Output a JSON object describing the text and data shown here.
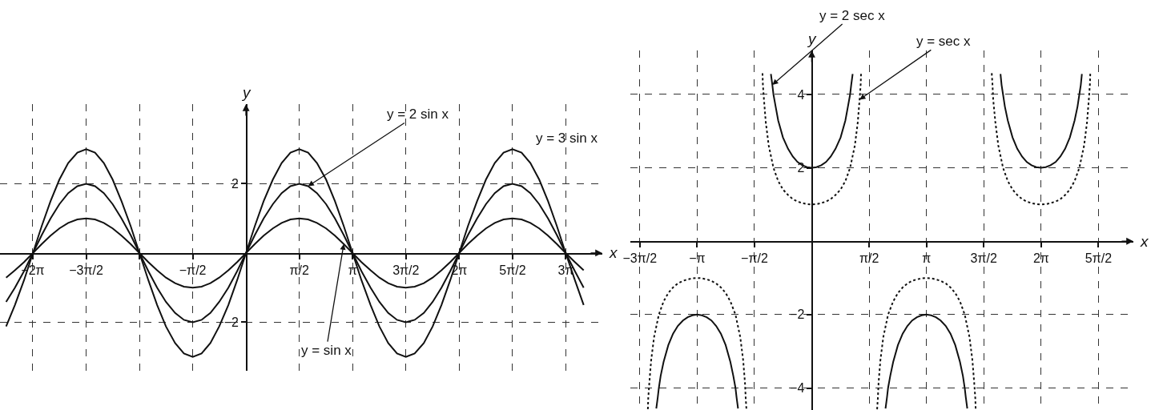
{
  "chart_data": [
    {
      "type": "line",
      "xlabel": "x",
      "ylabel": "y",
      "xlim": [
        -7.25,
        10.5
      ],
      "ylim": [
        -3.4,
        4.3
      ],
      "xticks": [
        {
          "value": -6.2832,
          "label": "−2π"
        },
        {
          "value": -4.7124,
          "label": "−3π/2"
        },
        {
          "value": -3.1416,
          "label": null
        },
        {
          "value": -1.5708,
          "label": "−π/2"
        },
        {
          "value": 1.5708,
          "label": "π/2"
        },
        {
          "value": 3.1416,
          "label": "π"
        },
        {
          "value": 4.7124,
          "label": "3π/2"
        },
        {
          "value": 6.2832,
          "label": "2π"
        },
        {
          "value": 7.854,
          "label": "5π/2"
        },
        {
          "value": 9.4248,
          "label": "3π"
        }
      ],
      "yticks": [
        -2,
        2
      ],
      "grid": true,
      "x": [
        -7.07,
        -6.81,
        -6.54,
        -6.28,
        -6.02,
        -5.76,
        -5.5,
        -5.24,
        -4.97,
        -4.71,
        -4.45,
        -4.19,
        -3.93,
        -3.67,
        -3.4,
        -3.14,
        -2.88,
        -2.62,
        -2.36,
        -2.09,
        -1.83,
        -1.57,
        -1.31,
        -1.05,
        -0.79,
        -0.52,
        -0.26,
        0,
        0.26,
        0.52,
        0.79,
        1.05,
        1.31,
        1.57,
        1.83,
        2.09,
        2.36,
        2.62,
        2.88,
        3.14,
        3.4,
        3.67,
        3.93,
        4.19,
        4.45,
        4.71,
        4.97,
        5.24,
        5.5,
        5.76,
        6.02,
        6.28,
        6.54,
        6.81,
        7.07,
        7.33,
        7.59,
        7.85,
        8.12,
        8.38,
        8.64,
        8.9,
        9.16,
        9.42,
        9.69,
        9.95
      ],
      "series": [
        {
          "name": "y = sin x",
          "color": "#111111",
          "values": [
            -0.71,
            -0.5,
            -0.26,
            0,
            0.26,
            0.5,
            0.71,
            0.87,
            0.97,
            1,
            0.97,
            0.87,
            0.71,
            0.5,
            0.26,
            0,
            -0.26,
            -0.5,
            -0.71,
            -0.87,
            -0.97,
            -1,
            -0.97,
            -0.87,
            -0.71,
            -0.5,
            -0.26,
            0,
            0.26,
            0.5,
            0.71,
            0.87,
            0.97,
            1,
            0.97,
            0.87,
            0.71,
            0.5,
            0.26,
            0,
            -0.26,
            -0.5,
            -0.71,
            -0.87,
            -0.97,
            -1,
            -0.97,
            -0.87,
            -0.71,
            -0.5,
            -0.26,
            0,
            0.26,
            0.5,
            0.71,
            0.87,
            0.97,
            1,
            0.97,
            0.87,
            0.71,
            0.5,
            0.26,
            0,
            -0.26,
            -0.5
          ]
        },
        {
          "name": "y = 2 sin x",
          "color": "#111111",
          "values": [
            -1.41,
            -1,
            -0.52,
            0,
            0.52,
            1,
            1.41,
            1.73,
            1.93,
            2,
            1.93,
            1.73,
            1.41,
            1,
            0.52,
            0,
            -0.52,
            -1,
            -1.41,
            -1.73,
            -1.93,
            -2,
            -1.93,
            -1.73,
            -1.41,
            -1,
            -0.52,
            0,
            0.52,
            1,
            1.41,
            1.73,
            1.93,
            2,
            1.93,
            1.73,
            1.41,
            1,
            0.52,
            0,
            -0.52,
            -1,
            -1.41,
            -1.73,
            -1.93,
            -2,
            -1.93,
            -1.73,
            -1.41,
            -1,
            -0.52,
            0,
            0.52,
            1,
            1.41,
            1.73,
            1.93,
            2,
            1.93,
            1.73,
            1.41,
            1,
            0.52,
            0,
            -0.52,
            -1
          ]
        },
        {
          "name": "y = 3 sin x",
          "color": "#111111",
          "values": [
            -2.12,
            -1.5,
            -0.78,
            0,
            0.78,
            1.5,
            2.12,
            2.6,
            2.9,
            3,
            2.9,
            2.6,
            2.12,
            1.5,
            0.78,
            0,
            -0.78,
            -1.5,
            -2.12,
            -2.6,
            -2.9,
            -3,
            -2.9,
            -2.6,
            -2.12,
            -1.5,
            -0.78,
            0,
            0.78,
            1.5,
            2.12,
            2.6,
            2.9,
            3,
            2.9,
            2.6,
            2.12,
            1.5,
            0.78,
            0,
            -0.78,
            -1.5,
            -2.12,
            -2.6,
            -2.9,
            -3,
            -2.9,
            -2.6,
            -2.12,
            -1.5,
            -0.78,
            0,
            0.78,
            1.5,
            2.12,
            2.6,
            2.9,
            3,
            2.9,
            2.6,
            2.12,
            1.5,
            0.78,
            0,
            -0.78,
            -1.5
          ]
        }
      ]
    },
    {
      "type": "line",
      "xlabel": "x",
      "ylabel": "y",
      "xlim": [
        -4.97,
        8.81
      ],
      "ylim": [
        -4.6,
        5.2
      ],
      "xticks": [
        {
          "value": -4.7124,
          "label": "−3π/2"
        },
        {
          "value": -3.1416,
          "label": "−π"
        },
        {
          "value": -1.5708,
          "label": "−π/2"
        },
        {
          "value": 1.5708,
          "label": "π/2"
        },
        {
          "value": 3.1416,
          "label": "π"
        },
        {
          "value": 4.7124,
          "label": "3π/2"
        },
        {
          "value": 6.2832,
          "label": "2π"
        },
        {
          "value": 7.854,
          "label": "5π/2"
        }
      ],
      "yticks": [
        -4,
        -2,
        2,
        4
      ],
      "grid": true,
      "series": [
        {
          "name": "y = 2 sec x",
          "color": "#111111",
          "x": [
            -4.26,
            -4.22,
            -4.19,
            -4.14,
            -4.06,
            -3.93,
            -3.8,
            -3.67,
            -3.53,
            -3.4,
            -3.27,
            -3.14,
            -3.01,
            -2.88,
            -2.75,
            -2.62,
            -2.49,
            -2.36,
            -2.23,
            -2.15,
            -2.09,
            -2.06,
            -2.02,
            -1.57,
            -1.12,
            -1.08,
            -1.05,
            -0.99,
            -0.92,
            -0.79,
            -0.65,
            -0.52,
            -0.39,
            -0.26,
            -0.13,
            0,
            0.13,
            0.26,
            0.39,
            0.52,
            0.65,
            0.79,
            0.92,
            0.99,
            1.05,
            1.08,
            1.12,
            1.57,
            2.02,
            2.06,
            2.09,
            2.15,
            2.23,
            2.36,
            2.49,
            2.62,
            2.75,
            2.88,
            3.01,
            3.14,
            3.27,
            3.4,
            3.53,
            3.67,
            3.8,
            3.93,
            4.06,
            4.14,
            4.19,
            4.22,
            4.26,
            4.71,
            5.17,
            5.2,
            5.24,
            5.29,
            5.37,
            5.5,
            5.63,
            5.76,
            5.89,
            6.02,
            6.15,
            6.28,
            6.41,
            6.54,
            6.68,
            6.81,
            6.94,
            7.07,
            7.2,
            7.28,
            7.33,
            7.37,
            7.4
          ],
          "values": [
            -4.56,
            -4.26,
            -4,
            -3.67,
            -3.29,
            -2.83,
            -2.52,
            -2.31,
            -2.16,
            -2.07,
            -2.02,
            -2,
            -2.02,
            -2.07,
            -2.16,
            -2.31,
            -2.52,
            -2.83,
            -3.29,
            -3.67,
            -4,
            -4.26,
            -4.56,
            null,
            4.56,
            4.26,
            4,
            3.67,
            3.29,
            2.83,
            2.52,
            2.31,
            2.16,
            2.07,
            2.02,
            2,
            2.02,
            2.07,
            2.16,
            2.31,
            2.52,
            2.83,
            3.29,
            3.67,
            4,
            4.26,
            4.56,
            null,
            -4.56,
            -4.26,
            -4,
            -3.67,
            -3.29,
            -2.83,
            -2.52,
            -2.31,
            -2.16,
            -2.07,
            -2.02,
            -2,
            -2.02,
            -2.07,
            -2.16,
            -2.31,
            -2.52,
            -2.83,
            -3.29,
            -3.67,
            -4,
            -4.26,
            -4.56,
            null,
            4.56,
            4.26,
            4,
            3.67,
            3.29,
            2.83,
            2.52,
            2.31,
            2.16,
            2.07,
            2.02,
            2,
            2.02,
            2.07,
            2.16,
            2.31,
            2.52,
            2.83,
            3.29,
            3.67,
            4,
            4.26,
            4.56
          ]
        },
        {
          "name": "y = sec x",
          "color": "#111111",
          "line_style": "dotted",
          "x": [
            -4.49,
            -4.48,
            -4.45,
            -4.4,
            -4.32,
            -4.19,
            -4.06,
            -3.93,
            -3.8,
            -3.67,
            -3.53,
            -3.4,
            -3.27,
            -3.14,
            -3.01,
            -2.88,
            -2.75,
            -2.62,
            -2.49,
            -2.36,
            -2.23,
            -2.09,
            -1.96,
            -1.88,
            -1.83,
            -1.81,
            -1.79,
            -1.57,
            -1.35,
            -1.34,
            -1.31,
            -1.26,
            -1.18,
            -1.05,
            -0.92,
            -0.79,
            -0.65,
            -0.52,
            -0.39,
            -0.26,
            -0.13,
            0,
            0.13,
            0.26,
            0.39,
            0.52,
            0.65,
            0.79,
            0.92,
            1.05,
            1.18,
            1.26,
            1.31,
            1.34,
            1.35,
            1.57,
            1.79,
            1.81,
            1.83,
            1.88,
            1.96,
            2.09,
            2.23,
            2.36,
            2.49,
            2.62,
            2.75,
            2.88,
            3.01,
            3.14,
            3.27,
            3.4,
            3.53,
            3.67,
            3.8,
            3.93,
            4.06,
            4.19,
            4.32,
            4.4,
            4.45,
            4.48,
            4.49,
            4.71,
            4.93,
            4.95,
            4.97,
            5.03,
            5.11,
            5.24,
            5.37,
            5.5,
            5.63,
            5.76,
            5.89,
            6.02,
            6.15,
            6.28,
            6.41,
            6.54,
            6.68,
            6.81,
            6.94,
            7.07,
            7.2,
            7.33,
            7.46,
            7.54,
            7.59,
            7.62,
            7.63
          ],
          "values": [
            -4.58,
            -4.28,
            -3.86,
            -3.24,
            -2.61,
            -2,
            -1.64,
            -1.41,
            -1.26,
            -1.15,
            -1.08,
            -1.04,
            -1.01,
            -1,
            -1.01,
            -1.04,
            -1.08,
            -1.15,
            -1.26,
            -1.41,
            -1.64,
            -2,
            -2.61,
            -3.24,
            -3.86,
            -4.28,
            -4.58,
            null,
            4.58,
            4.28,
            3.86,
            3.24,
            2.61,
            2,
            1.64,
            1.41,
            1.26,
            1.15,
            1.08,
            1.04,
            1.01,
            1,
            1.01,
            1.04,
            1.08,
            1.15,
            1.26,
            1.41,
            1.64,
            2,
            2.61,
            3.24,
            3.86,
            4.28,
            4.58,
            null,
            -4.58,
            -4.28,
            -3.86,
            -3.24,
            -2.61,
            -2,
            -1.64,
            -1.41,
            -1.26,
            -1.15,
            -1.08,
            -1.04,
            -1.01,
            -1,
            -1.01,
            -1.04,
            -1.08,
            -1.15,
            -1.26,
            -1.41,
            -1.64,
            -2,
            -2.61,
            -3.24,
            -3.86,
            -4.28,
            -4.58,
            null,
            4.58,
            4.28,
            3.86,
            3.24,
            2.61,
            2,
            1.64,
            1.41,
            1.26,
            1.15,
            1.08,
            1.04,
            1.01,
            1,
            1.01,
            1.04,
            1.08,
            1.15,
            1.26,
            1.41,
            1.64,
            2,
            2.61,
            3.24,
            3.86,
            4.28,
            4.58
          ]
        }
      ]
    }
  ]
}
